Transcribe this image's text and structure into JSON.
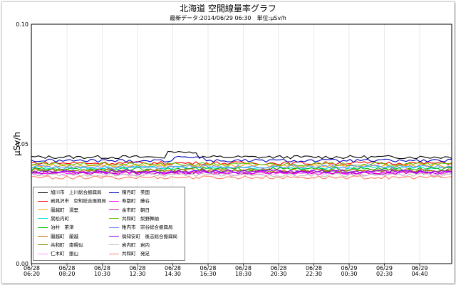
{
  "chart_data": {
    "type": "line",
    "title": "北海道 空間線量率グラフ",
    "subtitle": "最新データ:2014/06/29 06:30　単位:μSv/h",
    "ylabel": "μSv/h",
    "xlabel": "",
    "ylim": [
      0,
      0.1
    ],
    "yticks": [
      "0.00",
      "0.05",
      "0.10"
    ],
    "xtick_labels": [
      [
        "06/28",
        "06:20"
      ],
      [
        "06/28",
        "08:20"
      ],
      [
        "06/28",
        "10:30"
      ],
      [
        "06/28",
        "12:30"
      ],
      [
        "06/28",
        "14:30"
      ],
      [
        "06/28",
        "16:30"
      ],
      [
        "06/28",
        "18:30"
      ],
      [
        "06/28",
        "20:30"
      ],
      [
        "06/28",
        "22:30"
      ],
      [
        "06/29",
        "00:30"
      ],
      [
        "06/29",
        "02:30"
      ],
      [
        "06/29",
        "04:40"
      ]
    ],
    "grid": true,
    "legend_position": "bottom-left",
    "series": [
      {
        "name": "旭川市　上川総合振興局",
        "color": "#000000",
        "base": 0.0445
      },
      {
        "name": "岩見沢市　空知総合振興局",
        "color": "#ff0000",
        "base": 0.042
      },
      {
        "name": "蘭越町　湯里",
        "color": "#ffa000",
        "base": 0.041
      },
      {
        "name": "黒松内町",
        "color": "#00dddd",
        "base": 0.04
      },
      {
        "name": "泊村　茶津",
        "color": "#00c000",
        "base": 0.0395
      },
      {
        "name": "蘭越町　蘭越",
        "color": "#c06000",
        "base": 0.039
      },
      {
        "name": "共和町　南幌似",
        "color": "#808000",
        "base": 0.0385
      },
      {
        "name": "仁木町　銀山",
        "color": "#ff90ff",
        "base": 0.0375
      },
      {
        "name": "積丹町　美国",
        "color": "#0000c0",
        "base": 0.043
      },
      {
        "name": "寿都町　藤谷",
        "color": "#ff00ff",
        "base": 0.038
      },
      {
        "name": "余市町　朝日",
        "color": "#c000c0",
        "base": 0.038
      },
      {
        "name": "共和町　梨野舞納",
        "color": "#60c000",
        "base": 0.0415
      },
      {
        "name": "稚内市　宗谷総合振興局",
        "color": "#6090ff",
        "base": 0.0405
      },
      {
        "name": "倶知安町　後志総合振興局",
        "color": "#9000ff",
        "base": 0.0385
      },
      {
        "name": "岩内町　岩内",
        "color": "#c0c0c0",
        "base": 0.037
      },
      {
        "name": "共和町　発足",
        "color": "#ff8060",
        "base": 0.036
      }
    ]
  }
}
